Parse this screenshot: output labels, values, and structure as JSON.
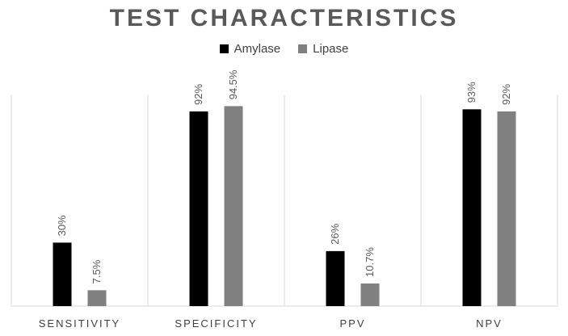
{
  "chart_data": {
    "type": "bar",
    "title": "TEST CHARACTERISTICS",
    "categories": [
      "SENSITIVITY",
      "SPECIFICITY",
      "PPV",
      "NPV"
    ],
    "series": [
      {
        "name": "Amylase",
        "color": "#000000",
        "values": [
          30,
          92,
          26,
          93
        ],
        "labels": [
          "30%",
          "92%",
          "26%",
          "93%"
        ]
      },
      {
        "name": "Lipase",
        "color": "#808080",
        "values": [
          7.5,
          94.5,
          10.7,
          92
        ],
        "labels": [
          "7.5%",
          "94.5%",
          "10.7%",
          "92%"
        ]
      }
    ],
    "ylim": [
      0,
      100
    ],
    "grid": false,
    "legend_position": "top"
  }
}
